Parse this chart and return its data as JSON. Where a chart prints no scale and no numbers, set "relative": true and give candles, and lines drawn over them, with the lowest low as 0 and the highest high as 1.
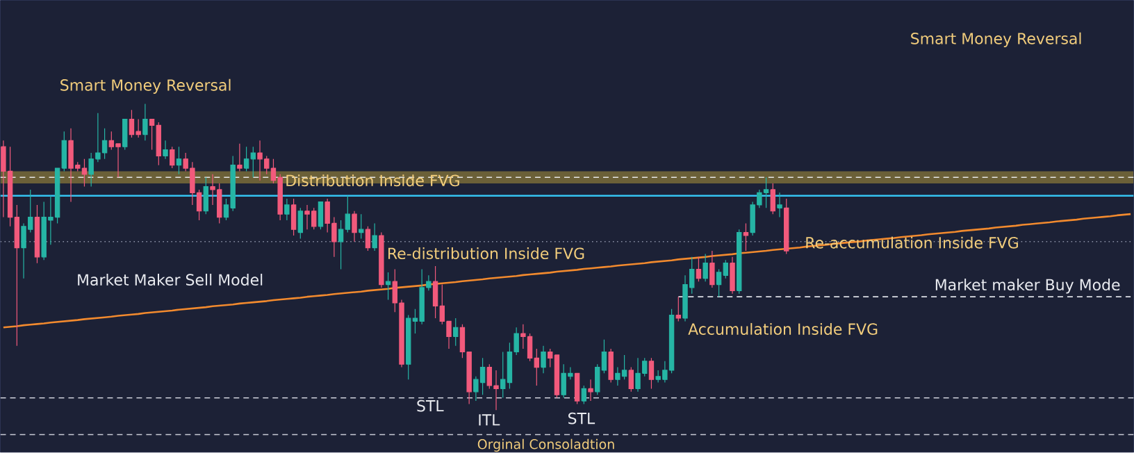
{
  "chart_data": {
    "type": "candlestick",
    "relative": true,
    "categories": [
      null,
      null,
      null,
      null,
      null,
      null,
      null,
      null,
      null,
      null,
      null,
      null,
      null,
      null,
      null,
      null,
      null,
      null,
      null,
      null,
      null,
      null,
      null,
      null,
      null,
      null,
      null,
      null,
      null,
      null,
      null,
      null,
      null,
      null,
      null,
      null,
      null,
      null,
      null,
      null,
      null,
      null,
      null,
      null,
      null,
      null,
      null,
      null,
      null,
      null,
      null,
      null,
      null,
      null,
      null,
      null,
      null,
      null,
      null,
      null,
      null,
      null,
      null,
      null,
      null,
      null,
      null,
      null,
      null,
      null,
      null,
      null,
      null,
      null,
      null,
      null,
      null,
      null,
      null,
      null,
      null,
      null,
      null,
      null,
      null,
      null,
      null,
      null,
      null,
      null,
      null,
      null,
      null,
      null,
      null,
      null,
      null,
      null,
      null,
      null,
      null,
      null,
      null,
      null,
      null,
      null,
      null,
      null,
      null,
      null,
      null,
      null,
      null,
      null,
      null,
      null,
      null,
      null,
      null,
      null,
      null,
      null,
      null,
      null,
      null,
      null,
      null,
      null,
      null,
      null,
      null,
      null,
      null,
      null,
      null,
      null,
      null,
      null,
      null,
      null,
      null,
      null,
      null,
      null,
      null,
      null,
      null,
      null,
      null,
      null,
      null,
      null,
      null,
      null,
      null,
      null,
      null,
      null,
      null,
      null,
      null,
      null,
      null,
      null,
      null,
      null,
      null,
      null
    ],
    "ohlc": [
      [
        0.86,
        0.88,
        0.63,
        0.78
      ],
      [
        0.78,
        0.86,
        0.6,
        0.63
      ],
      [
        0.63,
        0.67,
        0.21,
        0.53
      ],
      [
        0.53,
        0.61,
        0.43,
        0.6
      ],
      [
        0.59,
        0.72,
        0.58,
        0.63
      ],
      [
        0.63,
        0.67,
        0.48,
        0.5
      ],
      [
        0.5,
        0.68,
        0.49,
        0.63
      ],
      [
        0.62,
        0.7,
        0.54,
        0.63
      ],
      [
        0.63,
        0.79,
        0.61,
        0.79
      ],
      [
        0.79,
        0.91,
        0.78,
        0.88
      ],
      [
        0.88,
        0.92,
        0.68,
        0.79
      ],
      [
        0.8,
        0.81,
        0.78,
        0.79
      ],
      [
        0.79,
        0.82,
        0.73,
        0.77
      ],
      [
        0.77,
        0.84,
        0.73,
        0.82
      ],
      [
        0.82,
        0.97,
        0.81,
        0.84
      ],
      [
        0.84,
        0.92,
        0.82,
        0.88
      ],
      [
        0.88,
        0.91,
        0.85,
        0.86
      ],
      [
        0.87,
        0.87,
        0.76,
        0.86
      ],
      [
        0.86,
        0.95,
        0.85,
        0.95
      ],
      [
        0.95,
        0.98,
        0.89,
        0.9
      ],
      [
        0.91,
        0.95,
        0.89,
        0.9
      ],
      [
        0.9,
        1.0,
        0.88,
        0.95
      ],
      [
        0.95,
        0.95,
        0.85,
        0.93
      ],
      [
        0.93,
        0.94,
        0.8,
        0.83
      ],
      [
        0.83,
        0.88,
        0.82,
        0.85
      ],
      [
        0.85,
        0.86,
        0.79,
        0.8
      ],
      [
        0.8,
        0.86,
        0.77,
        0.82
      ],
      [
        0.82,
        0.84,
        0.78,
        0.79
      ],
      [
        0.79,
        0.81,
        0.67,
        0.71
      ],
      [
        0.71,
        0.72,
        0.62,
        0.65
      ],
      [
        0.65,
        0.76,
        0.64,
        0.73
      ],
      [
        0.73,
        0.77,
        0.67,
        0.72
      ],
      [
        0.72,
        0.74,
        0.61,
        0.63
      ],
      [
        0.63,
        0.69,
        0.62,
        0.67
      ],
      [
        0.66,
        0.83,
        0.65,
        0.8
      ],
      [
        0.8,
        0.87,
        0.78,
        0.79
      ],
      [
        0.79,
        0.86,
        0.78,
        0.82
      ],
      [
        0.82,
        0.86,
        0.76,
        0.84
      ],
      [
        0.84,
        0.88,
        0.75,
        0.82
      ],
      [
        0.82,
        0.83,
        0.77,
        0.79
      ],
      [
        0.79,
        0.82,
        0.74,
        0.75
      ],
      [
        0.76,
        0.77,
        0.62,
        0.64
      ],
      [
        0.64,
        0.69,
        0.62,
        0.67
      ],
      [
        0.67,
        0.69,
        0.57,
        0.59
      ],
      [
        0.58,
        0.66,
        0.56,
        0.65
      ],
      [
        0.65,
        0.67,
        0.59,
        0.64
      ],
      [
        0.65,
        0.66,
        0.59,
        0.6
      ],
      [
        0.6,
        0.68,
        0.59,
        0.68
      ],
      [
        0.68,
        0.69,
        0.58,
        0.61
      ],
      [
        0.61,
        0.63,
        0.5,
        0.55
      ],
      [
        0.55,
        0.62,
        0.46,
        0.59
      ],
      [
        0.59,
        0.7,
        0.58,
        0.64
      ],
      [
        0.64,
        0.65,
        0.55,
        0.58
      ],
      [
        0.58,
        0.64,
        0.56,
        0.59
      ],
      [
        0.59,
        0.6,
        0.52,
        0.53
      ],
      [
        0.53,
        0.61,
        0.52,
        0.57
      ],
      [
        0.57,
        0.58,
        0.4,
        0.41
      ],
      [
        0.41,
        0.45,
        0.36,
        0.42
      ],
      [
        0.42,
        0.46,
        0.32,
        0.35
      ],
      [
        0.35,
        0.36,
        0.14,
        0.15
      ],
      [
        0.15,
        0.31,
        0.1,
        0.3
      ],
      [
        0.29,
        0.33,
        0.25,
        0.3
      ],
      [
        0.29,
        0.46,
        0.28,
        0.4
      ],
      [
        0.4,
        0.44,
        0.39,
        0.42
      ],
      [
        0.42,
        0.47,
        0.3,
        0.34
      ],
      [
        0.34,
        0.41,
        0.28,
        0.29
      ],
      [
        0.29,
        0.29,
        0.2,
        0.24
      ],
      [
        0.24,
        0.3,
        0.21,
        0.27
      ],
      [
        0.27,
        0.28,
        0.17,
        0.19
      ],
      [
        0.19,
        0.19,
        0.02,
        0.06
      ],
      [
        0.06,
        0.11,
        0.03,
        0.1
      ],
      [
        0.09,
        0.17,
        0.05,
        0.14
      ],
      [
        0.14,
        0.15,
        0.07,
        0.08
      ],
      [
        0.08,
        0.13,
        0,
        0.07
      ],
      [
        0.07,
        0.19,
        0.04,
        0.1
      ],
      [
        0.09,
        0.22,
        0.07,
        0.19
      ],
      [
        0.19,
        0.27,
        0.18,
        0.25
      ],
      [
        0.25,
        0.28,
        0.2,
        0.24
      ],
      [
        0.24,
        0.25,
        0.16,
        0.17
      ],
      [
        0.17,
        0.2,
        0.08,
        0.14
      ],
      [
        0.14,
        0.21,
        0.12,
        0.19
      ],
      [
        0.19,
        0.2,
        0.14,
        0.17
      ],
      [
        0.18,
        0.18,
        0.04,
        0.05
      ],
      [
        0.05,
        0.15,
        0.04,
        0.12
      ],
      [
        0.11,
        0.14,
        0.1,
        0.12
      ],
      [
        0.12,
        0.12,
        0.02,
        0.03
      ],
      [
        0.03,
        0.08,
        0.02,
        0.07
      ],
      [
        0.07,
        0.1,
        0.03,
        0.06
      ],
      [
        0.06,
        0.15,
        0.05,
        0.14
      ],
      [
        0.13,
        0.23,
        0.12,
        0.19
      ],
      [
        0.19,
        0.2,
        0.09,
        0.1
      ],
      [
        0.1,
        0.14,
        0.08,
        0.12
      ],
      [
        0.11,
        0.18,
        0.1,
        0.13
      ],
      [
        0.13,
        0.14,
        0.06,
        0.07
      ],
      [
        0.07,
        0.17,
        0.06,
        0.12
      ],
      [
        0.12,
        0.17,
        0.11,
        0.16
      ],
      [
        0.16,
        0.17,
        0.07,
        0.1
      ],
      [
        0.1,
        0.13,
        0.09,
        0.11
      ],
      [
        0.1,
        0.16,
        0.09,
        0.13
      ],
      [
        0.13,
        0.33,
        0.12,
        0.31
      ],
      [
        0.31,
        0.37,
        0.29,
        0.3
      ],
      [
        0.3,
        0.44,
        0.29,
        0.41
      ],
      [
        0.4,
        0.5,
        0.38,
        0.46
      ],
      [
        0.46,
        0.5,
        0.42,
        0.43
      ],
      [
        0.43,
        0.51,
        0.42,
        0.48
      ],
      [
        0.48,
        0.52,
        0.4,
        0.41
      ],
      [
        0.41,
        0.46,
        0.37,
        0.45
      ],
      [
        0.44,
        0.49,
        0.43,
        0.48
      ],
      [
        0.48,
        0.5,
        0.38,
        0.39
      ],
      [
        0.39,
        0.59,
        0.38,
        0.58
      ],
      [
        0.58,
        0.61,
        0.52,
        0.57
      ],
      [
        0.58,
        0.68,
        0.57,
        0.67
      ],
      [
        0.67,
        0.72,
        0.66,
        0.71
      ],
      [
        0.71,
        0.76,
        0.66,
        0.72
      ],
      [
        0.72,
        0.74,
        0.64,
        0.65
      ],
      [
        0.66,
        0.71,
        0.63,
        0.67
      ],
      [
        0.66,
        0.69,
        0.51,
        0.52
      ],
      null,
      null,
      null,
      null,
      null,
      null,
      null,
      null,
      null,
      null,
      null,
      null,
      null,
      null,
      null,
      null,
      null,
      null,
      null,
      null,
      null,
      null,
      null,
      null,
      null,
      null,
      null,
      null,
      null,
      null,
      null,
      null,
      null,
      null,
      null,
      null,
      null,
      null,
      null,
      null,
      null,
      null,
      null,
      null,
      null,
      null,
      null,
      null,
      null,
      null,
      null
    ],
    "colors": [
      "#f25a7c",
      "#f25a7c",
      "#f25a7c",
      "#26b5a5",
      "#26b5a5",
      "#f25a7c",
      "#26b5a5",
      "#26b5a5",
      "#26b5a5",
      "#26b5a5",
      "#f25a7c",
      "#f25a7c",
      "#f25a7c",
      "#26b5a5",
      "#26b5a5",
      "#26b5a5",
      "#f25a7c",
      "#f25a7c",
      "#26b5a5",
      "#f25a7c",
      "#f25a7c",
      "#26b5a5",
      "#f25a7c",
      "#f25a7c",
      "#26b5a5",
      "#f25a7c",
      "#26b5a5",
      "#f25a7c",
      "#f25a7c",
      "#f25a7c",
      "#26b5a5",
      "#f25a7c",
      "#f25a7c",
      "#26b5a5",
      "#26b5a5",
      "#f25a7c",
      "#26b5a5",
      "#26b5a5",
      "#f25a7c",
      "#f25a7c",
      "#f25a7c",
      "#f25a7c",
      "#26b5a5",
      "#f25a7c",
      "#26b5a5",
      "#f25a7c",
      "#f25a7c",
      "#26b5a5",
      "#f25a7c",
      "#f25a7c",
      "#26b5a5",
      "#26b5a5",
      "#f25a7c",
      "#26b5a5",
      "#f25a7c",
      "#26b5a5",
      "#f25a7c",
      "#26b5a5",
      "#f25a7c",
      "#f25a7c",
      "#26b5a5",
      "#26b5a5",
      "#26b5a5",
      "#26b5a5",
      "#f25a7c",
      "#f25a7c",
      "#f25a7c",
      "#26b5a5",
      "#f25a7c",
      "#f25a7c",
      "#26b5a5",
      "#26b5a5",
      "#f25a7c",
      "#f25a7c",
      "#26b5a5",
      "#26b5a5",
      "#26b5a5",
      "#f25a7c",
      "#f25a7c",
      "#f25a7c",
      "#26b5a5",
      "#f25a7c",
      "#f25a7c",
      "#26b5a5",
      "#26b5a5",
      "#f25a7c",
      "#26b5a5",
      "#f25a7c",
      "#26b5a5",
      "#26b5a5",
      "#f25a7c",
      "#26b5a5",
      "#26b5a5",
      "#f25a7c",
      "#26b5a5",
      "#26b5a5",
      "#f25a7c",
      "#26b5a5",
      "#26b5a5",
      "#26b5a5",
      "#f25a7c",
      "#26b5a5",
      "#26b5a5",
      "#f25a7c",
      "#26b5a5",
      "#f25a7c",
      "#26b5a5",
      "#26b5a5",
      "#f25a7c",
      "#26b5a5",
      "#f25a7c",
      "#26b5a5",
      "#26b5a5",
      "#26b5a5",
      "#f25a7c",
      "#26b5a5",
      "#f25a7c",
      null,
      null,
      null,
      null,
      null,
      null,
      null,
      null,
      null,
      null,
      null,
      null,
      null,
      null,
      null,
      null,
      null,
      null,
      null,
      null,
      null,
      null,
      null,
      null,
      null,
      null,
      null,
      null,
      null,
      null,
      null,
      null,
      null,
      null,
      null,
      null,
      null,
      null,
      null,
      null,
      null,
      null,
      null,
      null,
      null,
      null,
      null,
      null,
      null,
      null,
      null
    ],
    "series": [
      {
        "type": "line",
        "color": "#f28a2e",
        "values": [
          0.27,
          0.272,
          0.274,
          0.277,
          0.279,
          0.281,
          0.283,
          0.286,
          0.288,
          0.29,
          0.292,
          0.294,
          0.297,
          0.299,
          0.301,
          0.303,
          0.305,
          0.308,
          0.31,
          0.312,
          0.314,
          0.317,
          0.319,
          0.321,
          0.323,
          0.325,
          0.328,
          0.33,
          0.332,
          0.334,
          0.336,
          0.339,
          0.341,
          0.343,
          0.345,
          0.348,
          0.35,
          0.352,
          0.354,
          0.356,
          0.359,
          0.361,
          0.363,
          0.365,
          0.367,
          0.37,
          0.372,
          0.374,
          0.376,
          0.379,
          0.381,
          0.383,
          0.385,
          0.387,
          0.39,
          0.392,
          0.394,
          0.396,
          0.399,
          0.401,
          0.403,
          0.405,
          0.407,
          0.41,
          0.412,
          0.414,
          0.416,
          0.418,
          0.421,
          0.423,
          0.425,
          0.427,
          0.43,
          0.432,
          0.434,
          0.436,
          0.438,
          0.441,
          0.443,
          0.445,
          0.447,
          0.449,
          0.452,
          0.454,
          0.456,
          0.458,
          0.461,
          0.463,
          0.465,
          0.467,
          0.469,
          0.472,
          0.474,
          0.476,
          0.478,
          0.48,
          0.483,
          0.485,
          0.487,
          0.489,
          0.492,
          0.494,
          0.496,
          0.498,
          0.5,
          0.503,
          0.505,
          0.507,
          0.509,
          0.512,
          0.514,
          0.516,
          0.518,
          0.52,
          0.523,
          0.525,
          0.527,
          0.529,
          0.531,
          0.534,
          0.536,
          0.538,
          0.54,
          0.543,
          0.545,
          0.547,
          0.549,
          0.551,
          0.554,
          0.556,
          0.558,
          0.56,
          0.562,
          0.565,
          0.567,
          0.569,
          0.571,
          0.574,
          0.576,
          0.578,
          0.58,
          0.582,
          0.585,
          0.587,
          0.589,
          0.591,
          0.593,
          0.596,
          0.598,
          0.6,
          0.602,
          0.605,
          0.607,
          0.609,
          0.611,
          0.613,
          0.616,
          0.618,
          0.62,
          0.622,
          0.625,
          0.627,
          0.629,
          0.631,
          0.633,
          0.636,
          0.638,
          0.64
        ]
      },
      {
        "type": "line",
        "color": "#dcdfe6",
        "line_style": "dashed",
        "values": [
          null,
          null,
          null,
          null,
          null,
          null,
          null,
          null,
          null,
          null,
          null,
          null,
          null,
          null,
          null,
          null,
          null,
          null,
          null,
          null,
          null,
          null,
          null,
          null,
          null,
          null,
          null,
          null,
          null,
          null,
          null,
          null,
          null,
          null,
          null,
          null,
          null,
          null,
          null,
          null,
          null,
          null,
          null,
          null,
          null,
          null,
          null,
          null,
          null,
          null,
          null,
          null,
          null,
          null,
          null,
          null,
          null,
          null,
          null,
          null,
          null,
          null,
          null,
          null,
          null,
          null,
          null,
          null,
          null,
          null,
          null,
          null,
          null,
          null,
          null,
          null,
          null,
          null,
          null,
          null,
          null,
          null,
          null,
          null,
          null,
          null,
          null,
          null,
          null,
          null,
          null,
          null,
          null,
          null,
          null,
          null,
          null,
          null,
          null,
          null,
          0.37,
          0.37,
          0.37,
          0.37,
          0.37,
          0.37,
          0.37,
          0.37,
          0.37,
          0.37,
          0.37,
          0.37,
          0.37,
          0.37,
          0.37,
          0.37,
          0.37,
          0.37,
          0.37,
          0.37,
          0.37,
          0.37,
          0.37,
          0.37,
          0.37,
          0.37,
          0.37,
          0.37,
          0.37,
          0.37,
          0.37,
          0.37,
          0.37,
          0.37,
          0.37,
          0.37,
          0.37,
          0.37,
          0.37,
          0.37,
          0.37,
          0.37,
          0.37,
          0.37,
          0.37,
          0.37,
          0.37,
          0.37,
          0.37,
          0.37,
          0.37,
          0.37,
          0.37,
          0.37,
          0.37,
          0.37,
          0.37,
          0.37,
          0.37,
          0.37,
          0.37,
          0.37,
          0.37,
          0.37,
          0.37,
          0.37,
          0.37,
          0.37
        ]
      }
    ],
    "bands": [
      {
        "axis": "y",
        "from": 0.74,
        "to": 0.78,
        "color": "#6b6038"
      }
    ],
    "ref_lines": [
      {
        "axis": "y",
        "value": 0.76,
        "color": "#e6e6e6",
        "line_style": "dashed"
      },
      {
        "axis": "y",
        "value": 0.7,
        "color": "#35c4f2",
        "line_style": "solid"
      },
      {
        "axis": "y",
        "value": 0.55,
        "color": "#8d93a8",
        "line_style": "dotted"
      },
      {
        "axis": "y",
        "value": 0.04,
        "color": "#d9dce4",
        "line_style": "dashed"
      },
      {
        "axis": "y",
        "value": -0.08,
        "label": "Orginal Consoladtion",
        "color": "#c8cbd6",
        "line_style": "dashed"
      }
    ],
    "annotations": [
      "Smart Money Reversal",
      "Distribution Inside FVG",
      "Market Maker Sell Model",
      "Re-distribution Inside FVG",
      "Accumulation Inside FVG",
      "Re-accumulation Inside FVG",
      "Market maker Buy Mode",
      "Smart Money Reversal",
      "STL",
      "ITL",
      "STL"
    ]
  }
}
